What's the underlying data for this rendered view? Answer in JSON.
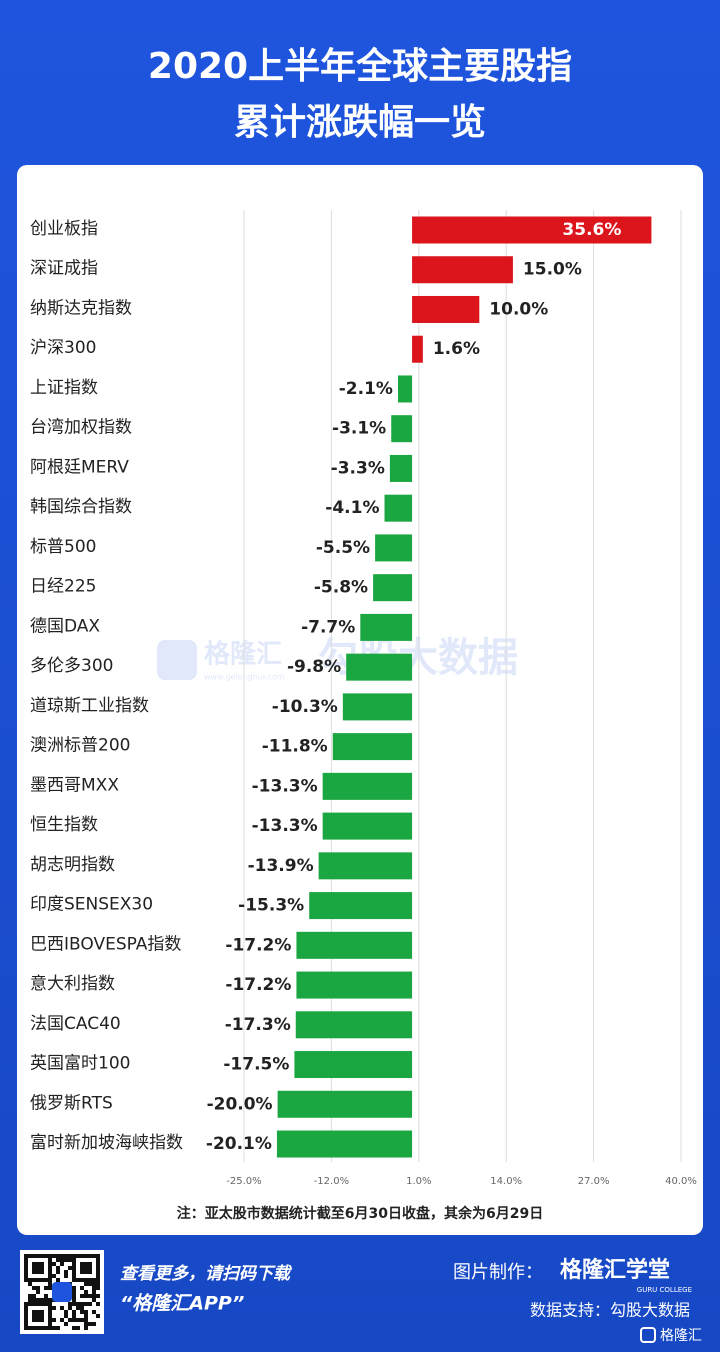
{
  "header": {
    "title_lines": [
      "2020上半年全球主要股指",
      "累计涨跌幅一览"
    ]
  },
  "chart_data": {
    "type": "bar",
    "orientation": "horizontal",
    "categories": [
      "创业板指",
      "深证成指",
      "纳斯达克指数",
      "沪深300",
      "上证指数",
      "台湾加权指数",
      "阿根廷MERV",
      "韩国综合指数",
      "标普500",
      "日经225",
      "德国DAX",
      "多伦多300",
      "道琼斯工业指数",
      "澳洲标普200",
      "墨西哥MXX",
      "恒生指数",
      "胡志明指数",
      "印度SENSEX30",
      "巴西IBOVESPA指数",
      "意大利指数",
      "法国CAC40",
      "英国富时100",
      "俄罗斯RTS",
      "富时新加坡海峡指数"
    ],
    "values": [
      35.6,
      15.0,
      10.0,
      1.6,
      -2.1,
      -3.1,
      -3.3,
      -4.1,
      -5.5,
      -5.8,
      -7.7,
      -9.8,
      -10.3,
      -11.8,
      -13.3,
      -13.3,
      -13.9,
      -15.3,
      -17.2,
      -17.2,
      -17.3,
      -17.5,
      -20.0,
      -20.1
    ],
    "value_labels": [
      "35.6%",
      "15.0%",
      "10.0%",
      "1.6%",
      "-2.1%",
      "-3.1%",
      "-3.3%",
      "-4.1%",
      "-5.5%",
      "-5.8%",
      "-7.7%",
      "-9.8%",
      "-10.3%",
      "-11.8%",
      "-13.3%",
      "-13.3%",
      "-13.9%",
      "-15.3%",
      "-17.2%",
      "-17.2%",
      "-17.3%",
      "-17.5%",
      "-20.0%",
      "-20.1%"
    ],
    "color_positive": "#dc141c",
    "color_negative": "#1aa640",
    "xlim": [
      -25,
      40
    ],
    "xticks": [
      {
        "value": -25,
        "label": "-25.0%"
      },
      {
        "value": -12,
        "label": "-12.0%"
      },
      {
        "value": 1,
        "label": "1.0%"
      },
      {
        "value": 14,
        "label": "14.0%"
      },
      {
        "value": 27,
        "label": "27.0%"
      },
      {
        "value": 40,
        "label": "40.0%"
      }
    ],
    "grid": true,
    "note": "注：亚太股市数据统计截至6月30日收盘，其余为6月29日"
  },
  "watermark": {
    "brand": "格隆汇",
    "url": "www.gelonghui.com",
    "text": "勾股大数据"
  },
  "footer": {
    "scan_text": "查看更多，请扫码下载",
    "app_name": "“格隆汇APP”",
    "made_by_label": "图片制作：",
    "made_by": "格隆汇学堂",
    "made_by_en": "GURU COLLEGE",
    "data_support": "数据支持：勾股大数据",
    "corner_brand": "格隆汇"
  }
}
